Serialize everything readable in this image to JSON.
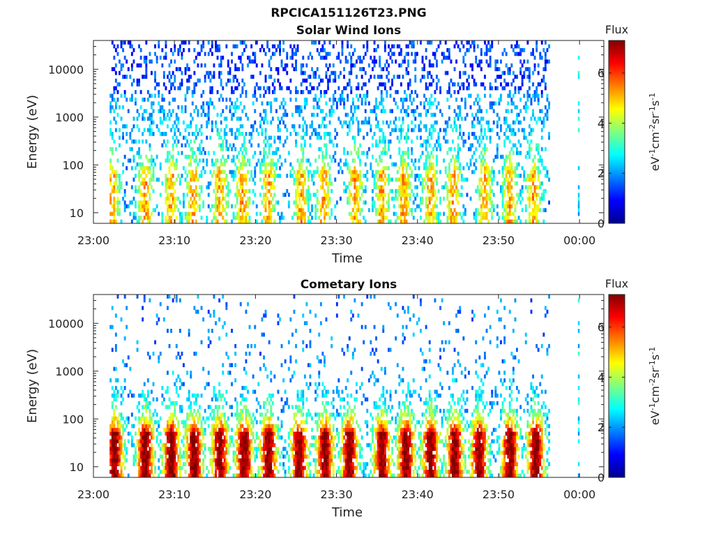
{
  "figure": {
    "title": "RPCICA151126T23.PNG"
  },
  "chart_data": [
    {
      "type": "heatmap",
      "title": "Solar Wind Ions",
      "xlabel": "Time",
      "ylabel": "Energy (eV)",
      "x_ticks": [
        "23:00",
        "23:10",
        "23:20",
        "23:30",
        "23:40",
        "23:50",
        "00:00"
      ],
      "x_range_minutes": [
        0,
        63
      ],
      "y_ticks": [
        "10",
        "100",
        "1000",
        "10000"
      ],
      "y_scale": "log",
      "y_range": [
        6,
        40000
      ],
      "colorbar": {
        "title": "Flux",
        "label": "eV-1cm-2sr-1s-1",
        "ticks": [
          "0",
          "2",
          "4",
          "6"
        ],
        "range": [
          0,
          7.3
        ]
      },
      "bursts_minutes": [
        2.2,
        6.3,
        9.5,
        12.2,
        15.5,
        18.3,
        21.5,
        25.5,
        28.3,
        32.2,
        35.5,
        38.2,
        41.5,
        44.3,
        48.2,
        51.3,
        54.2
      ],
      "data_end_minute": 56.2,
      "isolated_column_minute": 59.8
    },
    {
      "type": "heatmap",
      "title": "Cometary Ions",
      "xlabel": "Time",
      "ylabel": "Energy (eV)",
      "x_ticks": [
        "23:00",
        "23:10",
        "23:20",
        "23:30",
        "23:40",
        "23:50",
        "00:00"
      ],
      "x_range_minutes": [
        0,
        63
      ],
      "y_ticks": [
        "10",
        "100",
        "1000",
        "10000"
      ],
      "y_scale": "log",
      "y_range": [
        6,
        40000
      ],
      "colorbar": {
        "title": "Flux",
        "label": "eV-1cm-2sr-1s-1",
        "ticks": [
          "0",
          "2",
          "4",
          "6"
        ],
        "range": [
          0,
          7.3
        ]
      },
      "bursts_minutes": [
        2.5,
        6.3,
        9.5,
        12.3,
        15.5,
        18.5,
        21.5,
        25.3,
        28.5,
        31.5,
        35.5,
        38.5,
        41.5,
        44.5,
        47.5,
        51.3,
        54.5
      ],
      "data_end_minute": 56.2,
      "isolated_column_minute": 59.8
    }
  ]
}
